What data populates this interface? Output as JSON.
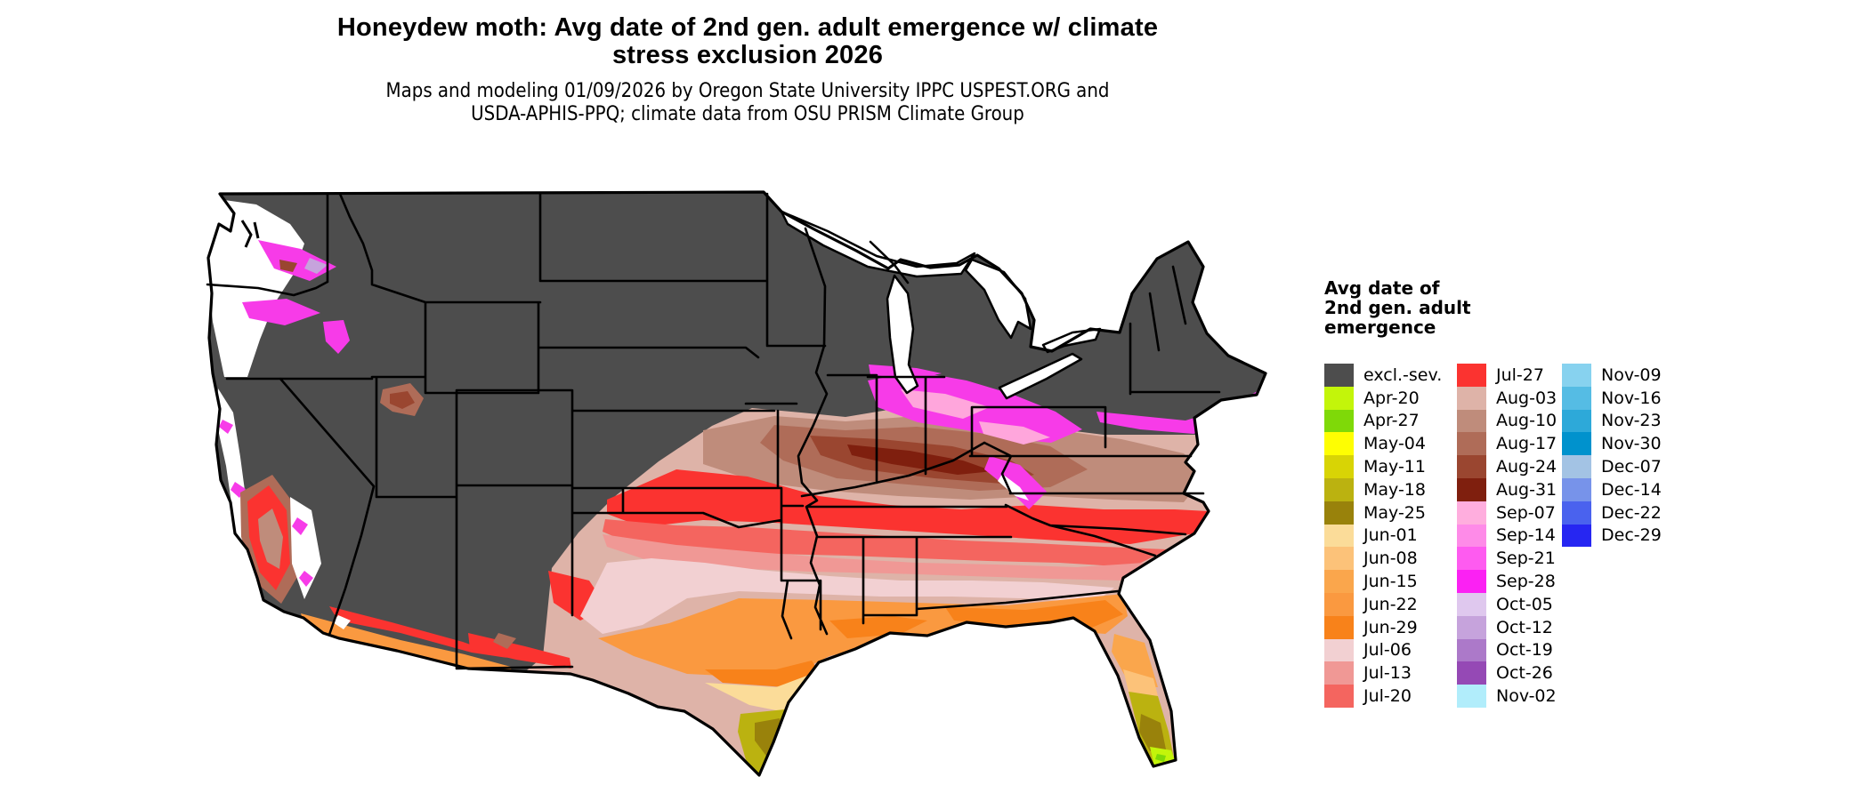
{
  "title": {
    "line1": "Honeydew moth: Avg date of 2nd gen. adult emergence w/ climate",
    "line2": "stress exclusion 2026"
  },
  "subtitle": {
    "line1": "Maps and modeling 01/09/2026 by Oregon State University IPPC USPEST.ORG and",
    "line2": "USDA-APHIS-PPQ; climate data from OSU PRISM Climate Group"
  },
  "legend": {
    "title_lines": [
      "Avg date of",
      "2nd gen. adult",
      "emergence"
    ],
    "columns": [
      {
        "entries": [
          {
            "label": "excl.-sev.",
            "color": "#4D4D4D"
          },
          {
            "label": "Apr-20",
            "color": "#C3F50A"
          },
          {
            "label": "Apr-27",
            "color": "#7FD908"
          },
          {
            "label": "May-04",
            "color": "#FEFE02"
          },
          {
            "label": "May-11",
            "color": "#D8D405"
          },
          {
            "label": "May-18",
            "color": "#BBB210"
          },
          {
            "label": "May-25",
            "color": "#99820B"
          },
          {
            "label": "Jun-01",
            "color": "#FBDC99"
          },
          {
            "label": "Jun-08",
            "color": "#FCC279"
          },
          {
            "label": "Jun-15",
            "color": "#FAA64C"
          },
          {
            "label": "Jun-22",
            "color": "#FA9940"
          },
          {
            "label": "Jun-29",
            "color": "#F8821A"
          },
          {
            "label": "Jul-06",
            "color": "#F2D0D2"
          },
          {
            "label": "Jul-13",
            "color": "#F09895"
          },
          {
            "label": "Jul-20",
            "color": "#F4655F"
          }
        ]
      },
      {
        "entries": [
          {
            "label": "Jul-27",
            "color": "#FB3330"
          },
          {
            "label": "Aug-03",
            "color": "#DEB3A8"
          },
          {
            "label": "Aug-10",
            "color": "#BF8C7B"
          },
          {
            "label": "Aug-17",
            "color": "#AF6C58"
          },
          {
            "label": "Aug-24",
            "color": "#9A4630"
          },
          {
            "label": "Aug-31",
            "color": "#7F1F0E"
          },
          {
            "label": "Sep-07",
            "color": "#FFAEDE"
          },
          {
            "label": "Sep-14",
            "color": "#FE8BE8"
          },
          {
            "label": "Sep-21",
            "color": "#FE5BF0"
          },
          {
            "label": "Sep-28",
            "color": "#FB21F3"
          },
          {
            "label": "Oct-05",
            "color": "#DFC8EE"
          },
          {
            "label": "Oct-12",
            "color": "#C6A3DC"
          },
          {
            "label": "Oct-19",
            "color": "#AC79C9"
          },
          {
            "label": "Oct-26",
            "color": "#9549B5"
          },
          {
            "label": "Nov-02",
            "color": "#B1EDFB"
          }
        ]
      },
      {
        "entries": [
          {
            "label": "Nov-09",
            "color": "#87D2EF"
          },
          {
            "label": "Nov-16",
            "color": "#55BCE4"
          },
          {
            "label": "Nov-23",
            "color": "#2DA9D9"
          },
          {
            "label": "Nov-30",
            "color": "#0092CD"
          },
          {
            "label": "Dec-07",
            "color": "#A3C3E4"
          },
          {
            "label": "Dec-14",
            "color": "#7793EA"
          },
          {
            "label": "Dec-22",
            "color": "#4A62EE"
          },
          {
            "label": "Dec-29",
            "color": "#2626F2"
          }
        ]
      }
    ]
  },
  "palette": {
    "gray": "#4D4D4D",
    "white": "#FFFFFF",
    "magenta": "#F73BE8",
    "pink_light": "#FFA6DC",
    "red": "#FB3330",
    "salmon": "#F4655F",
    "salmon_lt": "#F09895",
    "pink_pale": "#F2D0D2",
    "orange": "#FA9940",
    "orange_dk": "#F8821A",
    "orange_lt": "#FAA64C",
    "orange_pale": "#FCC279",
    "peach": "#FBDC99",
    "olive": "#BBB210",
    "olive_dk": "#99820B",
    "chartreuse": "#C3F50A",
    "green": "#7FD908",
    "brown_pale": "#DEB3A8",
    "brown_rosy": "#BF8C7B",
    "brown_mid": "#AF6C58",
    "brown_dk": "#9A4630",
    "brown_deep": "#7F1F0E",
    "lavender": "#C6A3DC"
  }
}
